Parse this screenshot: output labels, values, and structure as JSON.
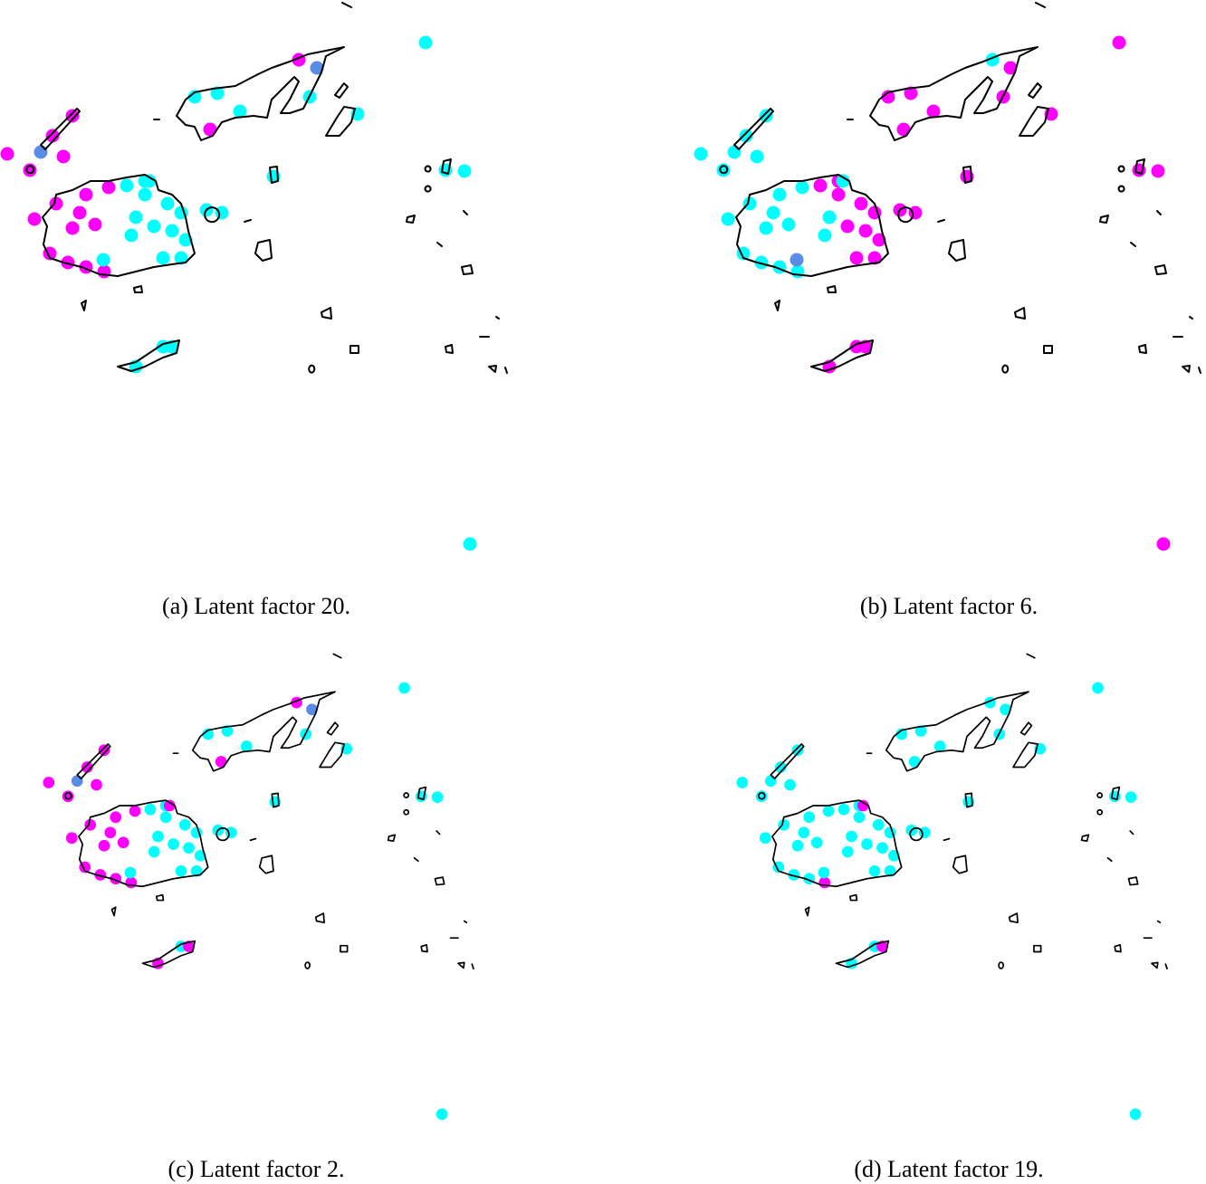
{
  "figure": {
    "panels": [
      {
        "caption": "(a) Latent factor 20.",
        "point_classes": "ccmbccccmcmmbmmmmmmmmmmmmmmcccccccccccccccccccccc"
      },
      {
        "caption": "(b) Latent factor 6.",
        "point_classes": "mmcmmmmmmmcccccccccccccccccbmmmmmccmmmmmmmmmmmmm"
      },
      {
        "caption": "(c) Latent factor 2.",
        "point_classes": "ccmbccccmcmmbmmmmmmmmmmmmmmcccccccccccccccccccmmm"
      },
      {
        "caption": "(d) Latent factor 19.",
        "point_classes": "ccccccccccccccccccccccccccmccccccccccccccccccccmmm"
      }
    ],
    "colors": {
      "m": "#ff00ff",
      "c": "#00ffff",
      "b": "#5a8ce6",
      "outline": "#000000"
    }
  }
}
